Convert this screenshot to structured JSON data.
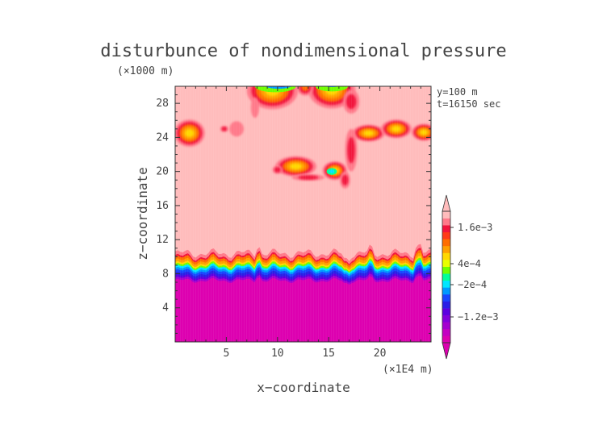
{
  "chart_data": {
    "type": "heatmap",
    "title": "disturbunce of nondimensional pressure",
    "y_unit": "(×1000 m)",
    "x_unit": "(×1E4 m)",
    "xlabel": "x−coordinate",
    "ylabel": "z−coordinate",
    "annotations": [
      "y=100 m",
      "t=16150 sec"
    ],
    "xlim": [
      0,
      25
    ],
    "ylim": [
      0,
      30
    ],
    "x_ticks": [
      5,
      10,
      15,
      20
    ],
    "y_ticks": [
      4,
      8,
      12,
      16,
      20,
      24,
      28
    ],
    "background_value_color": "#ffbcbc",
    "colorbar": {
      "labels": [
        "1.6e−3",
        "4e−4",
        "−2e−4",
        "−1.2e−3"
      ],
      "label_values": [
        0.0016,
        0.0004,
        -0.0002,
        -0.0012
      ],
      "colors": [
        "#dd00b0",
        "#c400c2",
        "#a400cf",
        "#8200db",
        "#5c00e0",
        "#2a1fe6",
        "#1846ff",
        "#0099ff",
        "#00e6ff",
        "#00ff9a",
        "#70ff00",
        "#e8ff00",
        "#ffd800",
        "#ffa000",
        "#ff6e00",
        "#ff3a18",
        "#f2143c",
        "#ff7a8a",
        "#ffbcbc"
      ]
    },
    "features": [
      {
        "kind": "low_layer",
        "z_range": [
          0,
          8
        ],
        "value_level": "minimum"
      },
      {
        "kind": "strong_gradient",
        "z_range": [
          8,
          10
        ]
      },
      {
        "kind": "positive_blob",
        "x": 1.5,
        "z": 24.5
      },
      {
        "kind": "positive_blob",
        "x": 11.5,
        "z": 20.5
      },
      {
        "kind": "positive_blob",
        "x": 15.2,
        "z": 20
      },
      {
        "kind": "positive_band",
        "x_range": [
          17,
          25
        ],
        "z": 24.5
      },
      {
        "kind": "upper_disturbance",
        "x_range": [
          6.5,
          18
        ],
        "z_range": [
          27,
          30
        ]
      }
    ]
  }
}
